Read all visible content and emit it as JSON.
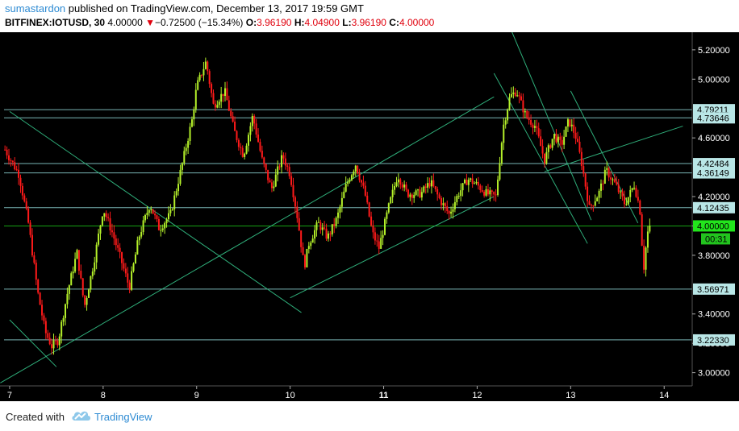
{
  "header": {
    "author": "sumastardon",
    "published": "published on TradingView.com, December 13, 2017 19:59 GMT",
    "symbol": "BITFINEX:IOTUSD, 30",
    "last": "4.00000",
    "arrow": "▼",
    "change": "−0.72500 (−15.34%)",
    "o_label": "O:",
    "o_val": "3.96190",
    "h_label": "H:",
    "h_val": "4.04900",
    "l_label": "L:",
    "l_val": "3.96190",
    "c_label": "C:",
    "c_val": "4.00000"
  },
  "footer": {
    "created_with": "Created with",
    "brand": "TradingView"
  },
  "colors": {
    "background": "#000000",
    "up": "#b4f02a",
    "down": "#ff1a1a",
    "trendline": "#2fae7a",
    "level_box": "#b9e6e6",
    "last_box": "#22e51c",
    "timer_box": "#22c41e",
    "axis_text": "#ffffff"
  },
  "chart_data": {
    "type": "candlestick",
    "interval": "30",
    "x_ticks": [
      "7",
      "8",
      "9",
      "10",
      "11",
      "12",
      "13",
      "14"
    ],
    "x_domain": [
      6.94,
      14.3
    ],
    "y_ticks": [
      "3.00000",
      "3.20000",
      "3.40000",
      "3.80000",
      "4.00000",
      "4.20000",
      "4.60000",
      "5.00000",
      "5.20000"
    ],
    "ylim": [
      2.91,
      5.32
    ],
    "horizontal_levels": [
      "4.79211",
      "4.73646",
      "4.42484",
      "4.36149",
      "4.12435",
      "3.56971",
      "3.22330"
    ],
    "last_price": "4.00000",
    "countdown": "00:31",
    "closes_path": [
      {
        "x": 6.95,
        "y": 4.52
      },
      {
        "x": 7.1,
        "y": 4.35
      },
      {
        "x": 7.2,
        "y": 4.02
      },
      {
        "x": 7.3,
        "y": 3.55
      },
      {
        "x": 7.38,
        "y": 3.28
      },
      {
        "x": 7.45,
        "y": 3.18
      },
      {
        "x": 7.52,
        "y": 3.22
      },
      {
        "x": 7.62,
        "y": 3.55
      },
      {
        "x": 7.72,
        "y": 3.82
      },
      {
        "x": 7.8,
        "y": 3.45
      },
      {
        "x": 7.9,
        "y": 3.75
      },
      {
        "x": 8.0,
        "y": 4.12
      },
      {
        "x": 8.1,
        "y": 3.95
      },
      {
        "x": 8.2,
        "y": 3.75
      },
      {
        "x": 8.28,
        "y": 3.58
      },
      {
        "x": 8.38,
        "y": 3.92
      },
      {
        "x": 8.5,
        "y": 4.15
      },
      {
        "x": 8.6,
        "y": 3.98
      },
      {
        "x": 8.72,
        "y": 4.08
      },
      {
        "x": 8.82,
        "y": 4.35
      },
      {
        "x": 8.95,
        "y": 4.72
      },
      {
        "x": 9.0,
        "y": 4.95
      },
      {
        "x": 9.1,
        "y": 5.12
      },
      {
        "x": 9.18,
        "y": 4.82
      },
      {
        "x": 9.3,
        "y": 4.92
      },
      {
        "x": 9.4,
        "y": 4.65
      },
      {
        "x": 9.5,
        "y": 4.48
      },
      {
        "x": 9.6,
        "y": 4.75
      },
      {
        "x": 9.7,
        "y": 4.45
      },
      {
        "x": 9.8,
        "y": 4.25
      },
      {
        "x": 9.92,
        "y": 4.48
      },
      {
        "x": 10.0,
        "y": 4.35
      },
      {
        "x": 10.08,
        "y": 4.05
      },
      {
        "x": 10.15,
        "y": 3.72
      },
      {
        "x": 10.2,
        "y": 3.88
      },
      {
        "x": 10.3,
        "y": 4.02
      },
      {
        "x": 10.4,
        "y": 3.92
      },
      {
        "x": 10.5,
        "y": 4.05
      },
      {
        "x": 10.6,
        "y": 4.28
      },
      {
        "x": 10.7,
        "y": 4.42
      },
      {
        "x": 10.8,
        "y": 4.22
      },
      {
        "x": 10.88,
        "y": 3.95
      },
      {
        "x": 10.95,
        "y": 3.85
      },
      {
        "x": 11.05,
        "y": 4.12
      },
      {
        "x": 11.15,
        "y": 4.35
      },
      {
        "x": 11.25,
        "y": 4.22
      },
      {
        "x": 11.4,
        "y": 4.22
      },
      {
        "x": 11.5,
        "y": 4.3
      },
      {
        "x": 11.6,
        "y": 4.18
      },
      {
        "x": 11.7,
        "y": 4.08
      },
      {
        "x": 11.8,
        "y": 4.22
      },
      {
        "x": 11.9,
        "y": 4.32
      },
      {
        "x": 12.0,
        "y": 4.28
      },
      {
        "x": 12.1,
        "y": 4.22
      },
      {
        "x": 12.2,
        "y": 4.2
      },
      {
        "x": 12.28,
        "y": 4.68
      },
      {
        "x": 12.35,
        "y": 4.88
      },
      {
        "x": 12.42,
        "y": 4.92
      },
      {
        "x": 12.52,
        "y": 4.75
      },
      {
        "x": 12.62,
        "y": 4.68
      },
      {
        "x": 12.72,
        "y": 4.45
      },
      {
        "x": 12.82,
        "y": 4.62
      },
      {
        "x": 12.9,
        "y": 4.55
      },
      {
        "x": 12.98,
        "y": 4.72
      },
      {
        "x": 13.05,
        "y": 4.62
      },
      {
        "x": 13.12,
        "y": 4.42
      },
      {
        "x": 13.2,
        "y": 4.12
      },
      {
        "x": 13.3,
        "y": 4.22
      },
      {
        "x": 13.38,
        "y": 4.38
      },
      {
        "x": 13.48,
        "y": 4.28
      },
      {
        "x": 13.58,
        "y": 4.15
      },
      {
        "x": 13.68,
        "y": 4.28
      },
      {
        "x": 13.74,
        "y": 4.12
      },
      {
        "x": 13.78,
        "y": 3.7
      },
      {
        "x": 13.82,
        "y": 3.95
      },
      {
        "x": 13.86,
        "y": 4.0
      }
    ],
    "trendlines": [
      {
        "x1": 7.0,
        "y1": 4.78,
        "x2": 10.12,
        "y2": 3.41
      },
      {
        "x1": 7.0,
        "y1": 3.36,
        "x2": 7.5,
        "y2": 3.04
      },
      {
        "x1": 6.9,
        "y1": 2.93,
        "x2": 12.18,
        "y2": 4.88
      },
      {
        "x1": 10.0,
        "y1": 3.51,
        "x2": 12.18,
        "y2": 4.2
      },
      {
        "x1": 12.72,
        "y1": 4.37,
        "x2": 14.2,
        "y2": 4.68
      },
      {
        "x1": 12.36,
        "y1": 5.34,
        "x2": 13.22,
        "y2": 4.04
      },
      {
        "x1": 12.18,
        "y1": 5.04,
        "x2": 13.18,
        "y2": 3.88
      },
      {
        "x1": 13.0,
        "y1": 4.92,
        "x2": 13.72,
        "y2": 4.02
      }
    ]
  }
}
